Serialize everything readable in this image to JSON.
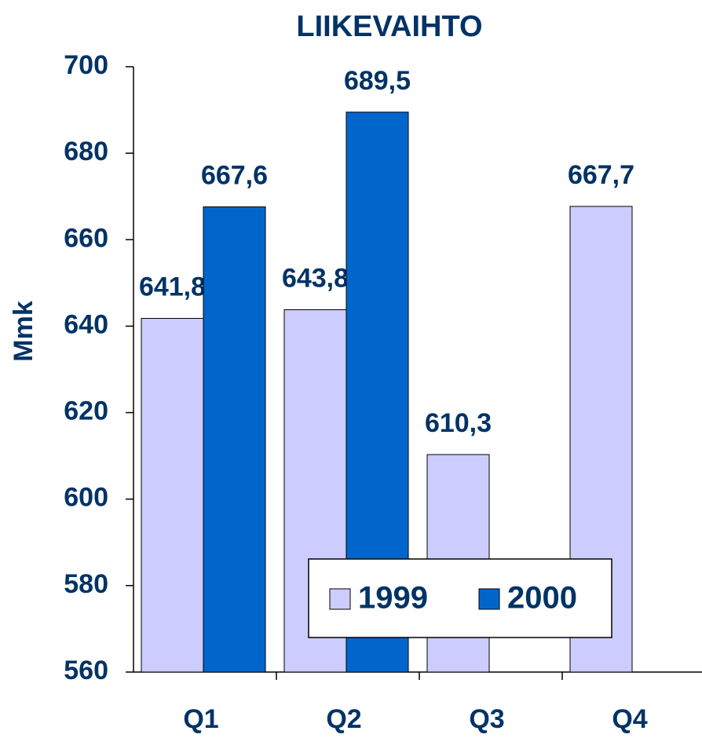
{
  "chart_data": {
    "type": "bar",
    "title": "LIIKEVAIHTO",
    "y_label": "Mmk",
    "categories": [
      "Q1",
      "Q2",
      "Q3",
      "Q4"
    ],
    "series": [
      {
        "name": "1999",
        "color": "#ccccff",
        "values": [
          641.8,
          643.8,
          610.3,
          667.7
        ],
        "value_labels": [
          "641,8",
          "643,8",
          "610,3",
          "667,7"
        ]
      },
      {
        "name": "2000",
        "color": "#0066cc",
        "values": [
          667.6,
          689.5,
          null,
          null
        ],
        "value_labels": [
          "667,6",
          "689,5",
          null,
          null
        ]
      }
    ],
    "ylim": [
      560,
      700
    ],
    "yticks": [
      560,
      580,
      600,
      620,
      640,
      660,
      680,
      700
    ],
    "grid": false,
    "legend": "bottom-right"
  }
}
